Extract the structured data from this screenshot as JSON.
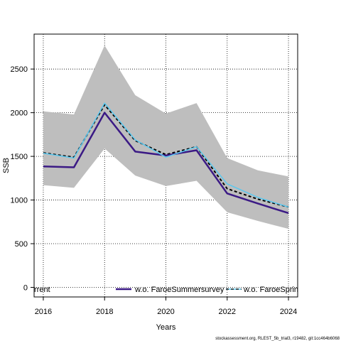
{
  "chart_data": {
    "type": "line",
    "xlabel": "Years",
    "ylabel": "SSB",
    "xlim": [
      2015.7,
      2024.3
    ],
    "ylim": [
      -110,
      2900
    ],
    "x_ticks": [
      "2016",
      "2018",
      "2020",
      "2022",
      "2024"
    ],
    "y_ticks": [
      "0",
      "500",
      "1000",
      "1500",
      "2000",
      "2500"
    ],
    "grid": true,
    "x": [
      2016,
      2017,
      2018,
      2019,
      2020,
      2021,
      2022,
      2023,
      2024
    ],
    "band": {
      "color": "#bebebe",
      "upper": [
        2015,
        1980,
        2770,
        2200,
        1990,
        2110,
        1480,
        1340,
        1270
      ],
      "lower": [
        1170,
        1140,
        1590,
        1280,
        1160,
        1220,
        860,
        760,
        670
      ]
    },
    "series": [
      {
        "name": "",
        "color": "#000000",
        "dash": "4,3",
        "width": 2,
        "values": [
          1540,
          1490,
          2090,
          1680,
          1520,
          1610,
          1130,
          1010,
          920
        ]
      },
      {
        "name": "w.o. FaroeSummersurvey",
        "color": "#3b1a85",
        "dash": "",
        "width": 2.5,
        "values": [
          1385,
          1375,
          2000,
          1555,
          1510,
          1570,
          1075,
          960,
          850
        ]
      },
      {
        "name": "w.o. FaroeSpringsurvey",
        "color": "#5bc8ef",
        "dash": "",
        "width": 1.5,
        "values": [
          1535,
          1480,
          2110,
          1690,
          1490,
          1610,
          1185,
          1030,
          920
        ]
      }
    ],
    "legend": [
      {
        "label": "rrent",
        "color": "#000000",
        "dash": "4,3",
        "show_line": false
      },
      {
        "label": "w.o. FaroeSummersurvey",
        "color": "#3b1a85",
        "dash": "",
        "show_line": true
      },
      {
        "label": "w.o. FaroeSpringsurvey",
        "color": "#5bc8ef",
        "dash": "4,3",
        "show_line": true
      }
    ],
    "legend_position": "bottom"
  },
  "footer": "stockassessment.org, RLEST_5b_trial3, r19482, git:1cc464b6068"
}
